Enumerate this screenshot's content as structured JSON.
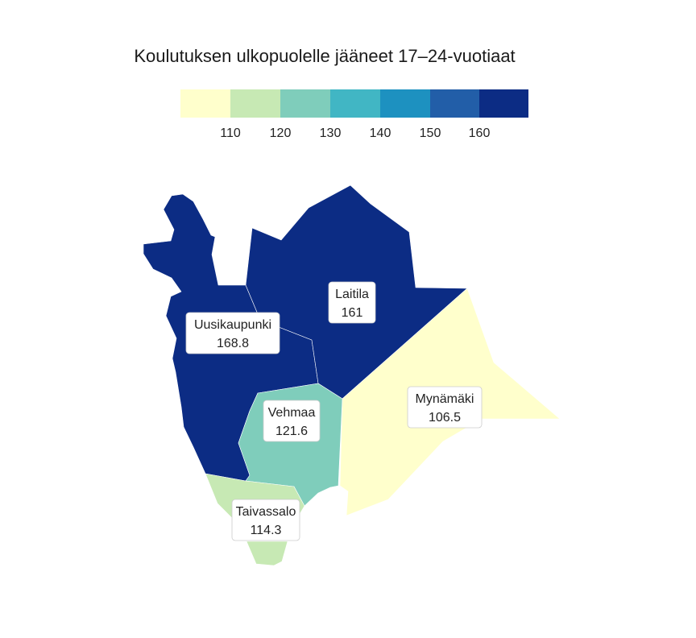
{
  "title": "Koulutuksen ulkopuolelle jääneet 17–24-vuotiaat",
  "legend": {
    "colors": [
      "#ffffcc",
      "#c7e9b4",
      "#7fcdbb",
      "#41b6c4",
      "#1d91c0",
      "#225ea8",
      "#0c2c84"
    ],
    "breaks": [
      "110",
      "120",
      "130",
      "140",
      "150",
      "160"
    ]
  },
  "regions": [
    {
      "id": "uusikaupunki",
      "name": "Uusikaupunki",
      "value": "168.8",
      "color": "#0c2c84"
    },
    {
      "id": "laitila",
      "name": "Laitila",
      "value": "161",
      "color": "#0c2c84"
    },
    {
      "id": "mynamaki",
      "name": "Mynämäki",
      "value": "106.5",
      "color": "#ffffcc"
    },
    {
      "id": "vehmaa",
      "name": "Vehmaa",
      "value": "121.6",
      "color": "#7fcdbb"
    },
    {
      "id": "taivassalo",
      "name": "Taivassalo",
      "value": "114.3",
      "color": "#c7e9b4"
    }
  ]
}
